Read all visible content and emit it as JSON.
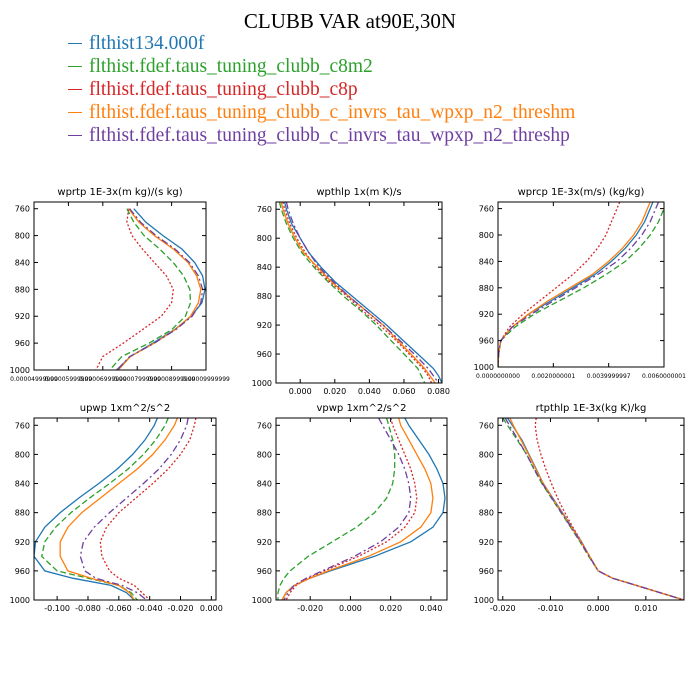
{
  "title": "CLUBB VAR at90E,30N",
  "legend": [
    {
      "label": "flthist134.000f",
      "color": "#1f77b4",
      "dash": "solid"
    },
    {
      "label": "flthist.fdef.taus_tuning_clubb_c8m2",
      "color": "#2ca02c",
      "dash": "dashed"
    },
    {
      "label": "flthist.fdef.taus_tuning_clubb_c8p",
      "color": "#d62728",
      "dash": "dotted"
    },
    {
      "label": "flthist.fdef.taus_tuning_clubb_c_invrs_tau_wpxp_n2_threshm",
      "color": "#ff7f0e",
      "dash": "solid"
    },
    {
      "label": "flthist.fdef.taus_tuning_clubb_c_invrs_tau_wpxp_n2_threshp",
      "color": "#6f3fa0",
      "dash": "dashdot"
    }
  ],
  "chart_data": [
    {
      "type": "line",
      "title": "wprtp  1E-3x(m kg)/(s kg)",
      "xlim": [
        4.99999e-05,
        9.9999e-05
      ],
      "xticks": [
        4.999999e-05,
        5.999999e-05,
        6.999999e-05,
        7.999999e-05,
        8.999999e-05,
        9.999999e-05
      ],
      "xticklabels": [
        "0.00004999999",
        "0.00005999999",
        "0.00006999999",
        "0.00007999999",
        "0.00008999999",
        "0.00009999999"
      ],
      "ylim": [
        1000,
        750
      ],
      "yticks": [
        760,
        800,
        840,
        880,
        920,
        960,
        1000
      ],
      "y": [
        760,
        780,
        800,
        820,
        840,
        860,
        880,
        900,
        920,
        940,
        960,
        980,
        1000
      ],
      "series": [
        {
          "name": "flthist134.000f",
          "values": [
            7.9e-05,
            8.25e-05,
            8.75e-05,
            9.3e-05,
            9.67e-05,
            9.9e-05,
            9.97e-05,
            9.88e-05,
            9.57e-05,
            9.08e-05,
            8.46e-05,
            7.8e-05,
            7.4e-05
          ]
        },
        {
          "name": "flthist.fdef.taus_tuning_clubb_c8m2",
          "values": [
            7.7e-05,
            7.9e-05,
            8.2e-05,
            8.65e-05,
            9.05e-05,
            9.35e-05,
            9.53e-05,
            9.55e-05,
            9.4e-05,
            9e-05,
            8.35e-05,
            7.55e-05,
            7.2e-05
          ]
        },
        {
          "name": "flthist.fdef.taus_tuning_clubb_c8p",
          "values": [
            7.75e-05,
            7.7e-05,
            7.85e-05,
            8.15e-05,
            8.5e-05,
            8.85e-05,
            9.05e-05,
            9e-05,
            8.7e-05,
            8.15e-05,
            7.6e-05,
            7e-05,
            6.8e-05
          ]
        },
        {
          "name": "flthist.fdef.taus_tuning_clubb_c_invrs_tau_wpxp_n2_threshm",
          "values": [
            7.75e-05,
            8.05e-05,
            8.5e-05,
            9.05e-05,
            9.48e-05,
            9.73e-05,
            9.85e-05,
            9.78e-05,
            9.55e-05,
            9.1e-05,
            8.5e-05,
            7.8e-05,
            7.45e-05
          ]
        },
        {
          "name": "flthist.fdef.taus_tuning_clubb_c_invrs_tau_wpxp_n2_threshp",
          "values": [
            7.78e-05,
            8.1e-05,
            8.55e-05,
            9.1e-05,
            9.52e-05,
            9.78e-05,
            9.9e-05,
            9.85e-05,
            9.6e-05,
            9.12e-05,
            8.5e-05,
            7.78e-05,
            7.42e-05
          ]
        }
      ]
    },
    {
      "type": "line",
      "title": "wpthlp  1x(m K)/s",
      "xlim": [
        -0.014,
        0.082
      ],
      "xticks": [
        0.0,
        0.02,
        0.04,
        0.06,
        0.08
      ],
      "xticklabels": [
        "0.000",
        "0.020",
        "0.040",
        "0.060",
        "0.080"
      ],
      "ylim": [
        1000,
        750
      ],
      "yticks": [
        760,
        800,
        840,
        880,
        920,
        960,
        1000
      ],
      "y": [
        750,
        760,
        780,
        800,
        820,
        840,
        860,
        880,
        900,
        920,
        940,
        960,
        980,
        990,
        1000
      ],
      "series": [
        {
          "name": "flthist134.000f",
          "values": [
            -0.009,
            -0.008,
            -0.005,
            0.0,
            0.005,
            0.012,
            0.02,
            0.03,
            0.04,
            0.05,
            0.059,
            0.068,
            0.077,
            0.08,
            0.082
          ]
        },
        {
          "name": "flthist.fdef.taus_tuning_clubb_c8m2",
          "values": [
            -0.012,
            -0.011,
            -0.008,
            -0.004,
            0.001,
            0.008,
            0.016,
            0.025,
            0.035,
            0.044,
            0.052,
            0.06,
            0.068,
            0.07,
            0.072
          ]
        },
        {
          "name": "flthist.fdef.taus_tuning_clubb_c8p",
          "values": [
            -0.01,
            -0.009,
            -0.006,
            -0.002,
            0.003,
            0.009,
            0.017,
            0.027,
            0.036,
            0.046,
            0.055,
            0.063,
            0.071,
            0.074,
            0.076
          ]
        },
        {
          "name": "flthist.fdef.taus_tuning_clubb_c_invrs_tau_wpxp_n2_threshm",
          "values": [
            -0.011,
            -0.01,
            -0.007,
            -0.003,
            0.002,
            0.01,
            0.018,
            0.028,
            0.038,
            0.048,
            0.056,
            0.064,
            0.072,
            0.075,
            0.078
          ]
        },
        {
          "name": "flthist.fdef.taus_tuning_clubb_c_invrs_tau_wpxp_n2_threshp",
          "values": [
            -0.008,
            -0.007,
            -0.004,
            0.0,
            0.005,
            0.011,
            0.019,
            0.028,
            0.038,
            0.048,
            0.057,
            0.066,
            0.074,
            0.077,
            0.08
          ]
        }
      ]
    },
    {
      "type": "line",
      "title": "wprcp  1E-3x(m/s) (kg/kg)",
      "xlim": [
        0.0,
        0.006
      ],
      "xticks": [
        0.0,
        0.002,
        0.004,
        0.006
      ],
      "xticklabels": [
        "0.0000000000",
        "0.0020000001",
        "0.0039999997",
        "0.0060000001"
      ],
      "ylim": [
        1000,
        750
      ],
      "yticks": [
        760,
        800,
        840,
        880,
        920,
        960,
        1000
      ],
      "y": [
        750,
        760,
        780,
        800,
        820,
        840,
        860,
        880,
        900,
        920,
        940,
        960,
        980,
        990,
        1000
      ],
      "series": [
        {
          "name": "flthist134.000f",
          "values": [
            0.0056,
            0.0055,
            0.0053,
            0.005,
            0.0046,
            0.0041,
            0.0035,
            0.0027,
            0.0019,
            0.0011,
            0.0005,
            0.0001,
            2e-05,
            1e-05,
            0.0
          ]
        },
        {
          "name": "flthist.fdef.taus_tuning_clubb_c8m2",
          "values": [
            0.0061,
            0.006,
            0.0058,
            0.0055,
            0.0051,
            0.0046,
            0.0039,
            0.0031,
            0.0022,
            0.0013,
            0.0006,
            0.0001,
            2e-05,
            1e-05,
            0.0
          ]
        },
        {
          "name": "flthist.fdef.taus_tuning_clubb_c8p",
          "values": [
            0.0044,
            0.0043,
            0.0041,
            0.0039,
            0.0036,
            0.0032,
            0.0027,
            0.0021,
            0.0015,
            0.0009,
            0.0004,
            0.0001,
            2e-05,
            1e-05,
            0.0
          ]
        },
        {
          "name": "flthist.fdef.taus_tuning_clubb_c_invrs_tau_wpxp_n2_threshm",
          "values": [
            0.0055,
            0.0054,
            0.0052,
            0.0049,
            0.0045,
            0.004,
            0.0034,
            0.0026,
            0.0018,
            0.0011,
            0.0005,
            0.0001,
            2e-05,
            1e-05,
            0.0
          ]
        },
        {
          "name": "flthist.fdef.taus_tuning_clubb_c_invrs_tau_wpxp_n2_threshp",
          "values": [
            0.0058,
            0.0057,
            0.0055,
            0.0052,
            0.0048,
            0.0043,
            0.0036,
            0.0028,
            0.002,
            0.0012,
            0.0005,
            0.0001,
            2e-05,
            1e-05,
            0.0
          ]
        }
      ]
    },
    {
      "type": "line",
      "title": "upwp  1xm^2/s^2",
      "xlim": [
        -0.115,
        0.003
      ],
      "xticks": [
        -0.1,
        -0.08,
        -0.06,
        -0.04,
        -0.02,
        0.0
      ],
      "xticklabels": [
        "-0.100",
        "-0.080",
        "-0.060",
        "-0.040",
        "-0.020",
        "0.000"
      ],
      "ylim": [
        1000,
        750
      ],
      "yticks": [
        760,
        800,
        840,
        880,
        920,
        960,
        1000
      ],
      "y": [
        750,
        760,
        780,
        800,
        820,
        840,
        860,
        880,
        900,
        920,
        940,
        960,
        970,
        980,
        990,
        1000
      ],
      "series": [
        {
          "name": "flthist134.000f",
          "values": [
            -0.035,
            -0.037,
            -0.043,
            -0.051,
            -0.061,
            -0.073,
            -0.086,
            -0.098,
            -0.108,
            -0.114,
            -0.115,
            -0.108,
            -0.09,
            -0.065,
            -0.055,
            -0.05
          ]
        },
        {
          "name": "flthist.fdef.taus_tuning_clubb_c8m2",
          "values": [
            -0.028,
            -0.03,
            -0.036,
            -0.044,
            -0.054,
            -0.066,
            -0.079,
            -0.091,
            -0.101,
            -0.108,
            -0.11,
            -0.1,
            -0.08,
            -0.06,
            -0.052,
            -0.048
          ]
        },
        {
          "name": "flthist.fdef.taus_tuning_clubb_c8p",
          "values": [
            -0.01,
            -0.011,
            -0.014,
            -0.02,
            -0.028,
            -0.038,
            -0.049,
            -0.06,
            -0.068,
            -0.072,
            -0.071,
            -0.066,
            -0.06,
            -0.05,
            -0.045,
            -0.04
          ]
        },
        {
          "name": "flthist.fdef.taus_tuning_clubb_c_invrs_tau_wpxp_n2_threshm",
          "values": [
            -0.022,
            -0.024,
            -0.03,
            -0.038,
            -0.048,
            -0.06,
            -0.072,
            -0.084,
            -0.093,
            -0.098,
            -0.098,
            -0.093,
            -0.078,
            -0.06,
            -0.053,
            -0.05
          ]
        },
        {
          "name": "flthist.fdef.taus_tuning_clubb_c_invrs_tau_wpxp_n2_threshp",
          "values": [
            -0.015,
            -0.016,
            -0.02,
            -0.026,
            -0.034,
            -0.044,
            -0.055,
            -0.066,
            -0.076,
            -0.083,
            -0.085,
            -0.082,
            -0.075,
            -0.058,
            -0.048,
            -0.042
          ]
        }
      ]
    },
    {
      "type": "line",
      "title": "vpwp  1xm^2/s^2",
      "xlim": [
        -0.037,
        0.048
      ],
      "xticks": [
        -0.02,
        0.0,
        0.02,
        0.04
      ],
      "xticklabels": [
        "-0.020",
        "0.000",
        "0.020",
        "0.040"
      ],
      "ylim": [
        1000,
        750
      ],
      "yticks": [
        760,
        800,
        840,
        880,
        920,
        960,
        1000
      ],
      "y": [
        750,
        760,
        780,
        800,
        820,
        840,
        860,
        880,
        900,
        920,
        940,
        960,
        970,
        980,
        990,
        1000
      ],
      "series": [
        {
          "name": "flthist134.000f",
          "values": [
            0.027,
            0.029,
            0.034,
            0.039,
            0.043,
            0.046,
            0.047,
            0.046,
            0.041,
            0.03,
            0.012,
            -0.01,
            -0.02,
            -0.028,
            -0.032,
            -0.034
          ]
        },
        {
          "name": "flthist.fdef.taus_tuning_clubb_c8m2",
          "values": [
            0.018,
            0.019,
            0.021,
            0.022,
            0.022,
            0.021,
            0.018,
            0.012,
            0.003,
            -0.009,
            -0.021,
            -0.03,
            -0.033,
            -0.035,
            -0.036,
            -0.036
          ]
        },
        {
          "name": "flthist.fdef.taus_tuning_clubb_c8p",
          "values": [
            0.02,
            0.021,
            0.024,
            0.027,
            0.03,
            0.032,
            0.033,
            0.032,
            0.027,
            0.018,
            0.004,
            -0.013,
            -0.021,
            -0.027,
            -0.03,
            -0.032
          ]
        },
        {
          "name": "flthist.fdef.taus_tuning_clubb_c_invrs_tau_wpxp_n2_threshm",
          "values": [
            0.024,
            0.025,
            0.029,
            0.033,
            0.037,
            0.04,
            0.041,
            0.04,
            0.035,
            0.025,
            0.009,
            -0.011,
            -0.02,
            -0.028,
            -0.032,
            -0.034
          ]
        },
        {
          "name": "flthist.fdef.taus_tuning_clubb_c_invrs_tau_wpxp_n2_threshp",
          "values": [
            0.014,
            0.016,
            0.02,
            0.024,
            0.027,
            0.029,
            0.03,
            0.029,
            0.024,
            0.015,
            0.002,
            -0.014,
            -0.022,
            -0.028,
            -0.031,
            -0.033
          ]
        }
      ]
    },
    {
      "type": "line",
      "title": "rtpthlp  1E-3x(kg K)/kg",
      "xlim": [
        -0.021,
        0.018
      ],
      "xticks": [
        -0.02,
        -0.01,
        0.0,
        0.01
      ],
      "xticklabels": [
        "-0.020",
        "-0.010",
        "0.000",
        "0.010"
      ],
      "ylim": [
        1000,
        750
      ],
      "yticks": [
        760,
        800,
        840,
        880,
        920,
        960,
        1000
      ],
      "y": [
        750,
        760,
        780,
        800,
        820,
        840,
        860,
        880,
        900,
        920,
        940,
        960,
        970,
        980,
        990,
        1000
      ],
      "series": [
        {
          "name": "flthist134.000f",
          "values": [
            -0.019,
            -0.018,
            -0.016,
            -0.0145,
            -0.013,
            -0.0115,
            -0.0095,
            -0.0075,
            -0.0055,
            -0.0035,
            -0.0018,
            0.0,
            0.003,
            0.008,
            0.013,
            0.018
          ]
        },
        {
          "name": "flthist.fdef.taus_tuning_clubb_c8m2",
          "values": [
            -0.02,
            -0.019,
            -0.017,
            -0.015,
            -0.0135,
            -0.0118,
            -0.0098,
            -0.0078,
            -0.0058,
            -0.0038,
            -0.002,
            0.0,
            0.003,
            0.008,
            0.013,
            0.018
          ]
        },
        {
          "name": "flthist.fdef.taus_tuning_clubb_c8p",
          "values": [
            -0.013,
            -0.0132,
            -0.0128,
            -0.012,
            -0.011,
            -0.0098,
            -0.0085,
            -0.007,
            -0.0053,
            -0.0035,
            -0.0018,
            0.0,
            0.003,
            0.008,
            0.013,
            0.018
          ]
        },
        {
          "name": "flthist.fdef.taus_tuning_clubb_c_invrs_tau_wpxp_n2_threshm",
          "values": [
            -0.0185,
            -0.0178,
            -0.0162,
            -0.0146,
            -0.0131,
            -0.0115,
            -0.0096,
            -0.0076,
            -0.0056,
            -0.0036,
            -0.0018,
            0.0,
            0.003,
            0.008,
            0.013,
            0.018
          ]
        },
        {
          "name": "flthist.fdef.taus_tuning_clubb_c_invrs_tau_wpxp_n2_threshp",
          "values": [
            -0.0195,
            -0.0186,
            -0.0168,
            -0.015,
            -0.0134,
            -0.0117,
            -0.0097,
            -0.0077,
            -0.0057,
            -0.0037,
            -0.0019,
            0.0,
            0.003,
            0.008,
            0.013,
            0.018
          ]
        }
      ]
    }
  ]
}
